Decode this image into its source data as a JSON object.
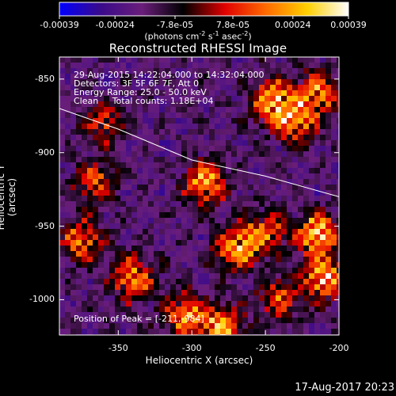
{
  "colorbar": {
    "tick_labels": [
      "-0.00039",
      "-0.00024",
      "-7.8e-05",
      "7.8e-05",
      "0.00024",
      "0.00039"
    ],
    "tick_values": [
      -0.00039,
      -0.00024,
      -7.8e-05,
      7.8e-05,
      0.00024,
      0.00039
    ],
    "units_prefix": "(photons cm",
    "units_exp1": "-2",
    "units_mid": " s",
    "units_exp2": "-1",
    "units_mid2": " asec",
    "units_exp3": "-2",
    "units_suffix": ")"
  },
  "image_info": {
    "time_range": "29-Aug-2015 14:22:04.000 to 14:32:04.000",
    "detectors": "Detectors: 3F 5F 6F 7F, Att 0",
    "energy_range": "Energy Range: 25.0 - 50.0 keV",
    "method_counts": "Clean     Total counts: 1.18E+04",
    "peak_label": "Position of Peak = [",
    "peak_value": "-211,-984",
    "peak_suffix": "]"
  },
  "footer": {
    "timestamp": "17-Aug-2017 20:23"
  },
  "chart_data": {
    "type": "heatmap",
    "title": "Reconstructed RHESSI Image",
    "xlabel": "Heliocentric X (arcsec)",
    "ylabel": "Heliocentric Y (arcsec)",
    "xlim": [
      -390,
      -200
    ],
    "ylim": [
      -1024,
      -835
    ],
    "x_ticks": [
      -350,
      -300,
      -250,
      -200
    ],
    "y_ticks": [
      -850,
      -900,
      -950,
      -1000
    ],
    "x_tick_labels": [
      "-350",
      "-300",
      "-250",
      "-200"
    ],
    "y_tick_labels": [
      "-850",
      "-900",
      "-950",
      "-1000"
    ],
    "colormap": [
      "#0000ff",
      "#3a0a8a",
      "#6a1e7a",
      "#000000",
      "#e00000",
      "#ff6a00",
      "#ffd000",
      "#ffffff"
    ],
    "value_range": [
      -0.00039,
      0.00039
    ],
    "limb_curve": {
      "x": [
        -390,
        -350,
        -300,
        -250,
        -200
      ],
      "y": [
        -870,
        -884,
        -905,
        -916,
        -930
      ]
    },
    "hotspots": [
      {
        "x": -245,
        "y": -865,
        "intensity": 0.9
      },
      {
        "x": -230,
        "y": -880,
        "intensity": 0.75
      },
      {
        "x": -215,
        "y": -860,
        "intensity": 0.8
      },
      {
        "x": -290,
        "y": -920,
        "intensity": 0.9
      },
      {
        "x": -270,
        "y": -965,
        "intensity": 0.85
      },
      {
        "x": -250,
        "y": -955,
        "intensity": 0.7
      },
      {
        "x": -215,
        "y": -955,
        "intensity": 1.0
      },
      {
        "x": -210,
        "y": -985,
        "intensity": 0.95
      },
      {
        "x": -340,
        "y": -985,
        "intensity": 0.8
      },
      {
        "x": -365,
        "y": -920,
        "intensity": 0.6
      },
      {
        "x": -375,
        "y": -960,
        "intensity": 0.7
      },
      {
        "x": -305,
        "y": -1010,
        "intensity": 0.8
      },
      {
        "x": -280,
        "y": -1020,
        "intensity": 0.9
      },
      {
        "x": -360,
        "y": -880,
        "intensity": 0.55
      },
      {
        "x": -240,
        "y": -1000,
        "intensity": 0.6
      }
    ]
  }
}
